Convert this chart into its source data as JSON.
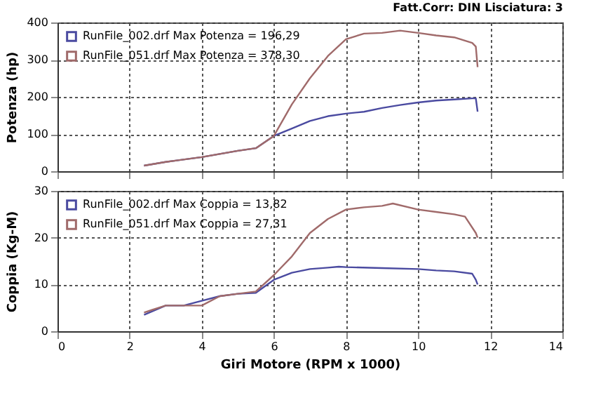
{
  "chart_data": [
    {
      "type": "line",
      "annotations": [
        "Fatt.Corr: DIN  Lisciatura: 3"
      ],
      "ylabel": "Potenza (hp)",
      "xlim": [
        0,
        14
      ],
      "xticks": [
        0,
        2,
        4,
        6,
        8,
        10,
        12,
        14
      ],
      "ylim": [
        0,
        400
      ],
      "yticks": [
        0,
        100,
        200,
        300,
        400
      ],
      "grid": true,
      "legend": "top left",
      "tick_labels": "y",
      "series": [
        {
          "name": "RunFile_002.drf Max Potenza = 196,29",
          "color": "#4a4aa0",
          "x": [
            2.4,
            3,
            4,
            5,
            5.5,
            6,
            6.5,
            7,
            7.5,
            8,
            8.5,
            9,
            9.5,
            10,
            10.5,
            11,
            11.5,
            11.6,
            11.65
          ],
          "values": [
            15,
            25,
            38,
            55,
            62,
            95,
            115,
            135,
            148,
            155,
            160,
            170,
            178,
            185,
            190,
            193,
            196,
            196,
            160
          ]
        },
        {
          "name": "RunFile_051.drf Max Potenza = 378,30",
          "color": "#a06a6a",
          "x": [
            2.4,
            3,
            4,
            5,
            5.5,
            6,
            6.5,
            7,
            7.5,
            8,
            8.5,
            9,
            9.5,
            10,
            10.5,
            11,
            11.5,
            11.6,
            11.65
          ],
          "values": [
            15,
            25,
            38,
            55,
            62,
            95,
            180,
            250,
            310,
            355,
            370,
            372,
            378,
            372,
            365,
            360,
            345,
            335,
            280
          ]
        }
      ]
    },
    {
      "type": "line",
      "xlabel": "Giri Motore (RPM x 1000)",
      "ylabel": "Coppia (Kg-M)",
      "xlim": [
        0,
        14
      ],
      "xticks": [
        0,
        2,
        4,
        6,
        8,
        10,
        12,
        14
      ],
      "ylim": [
        0,
        30
      ],
      "yticks": [
        0,
        10,
        20,
        30
      ],
      "grid": true,
      "legend": "top left",
      "series": [
        {
          "name": "RunFile_002.drf Max Coppia = 13,82",
          "color": "#4a4aa0",
          "x": [
            2.4,
            3,
            3.5,
            4,
            4.5,
            5,
            5.5,
            6,
            6.5,
            7,
            7.5,
            7.8,
            8,
            9,
            10,
            10.5,
            11,
            11.5,
            11.6,
            11.65
          ],
          "values": [
            3.5,
            5.5,
            5.5,
            6.5,
            7.5,
            8,
            8.2,
            11,
            12.5,
            13.3,
            13.6,
            13.8,
            13.7,
            13.5,
            13.3,
            13,
            12.8,
            12.3,
            11,
            10
          ]
        },
        {
          "name": "RunFile_051.drf Max Coppia = 27,31",
          "color": "#a06a6a",
          "x": [
            2.4,
            2.6,
            3,
            3.5,
            4,
            4.5,
            5,
            5.5,
            6,
            6.5,
            7,
            7.5,
            8,
            8.5,
            9,
            9.3,
            10,
            10.5,
            11,
            11.3,
            11.6,
            11.65
          ],
          "values": [
            4,
            4.5,
            5.5,
            5.5,
            5.5,
            7.5,
            8,
            8.5,
            12,
            16,
            21,
            24,
            26,
            26.5,
            26.8,
            27.3,
            26,
            25.5,
            25,
            24.5,
            21,
            20
          ]
        }
      ]
    }
  ]
}
